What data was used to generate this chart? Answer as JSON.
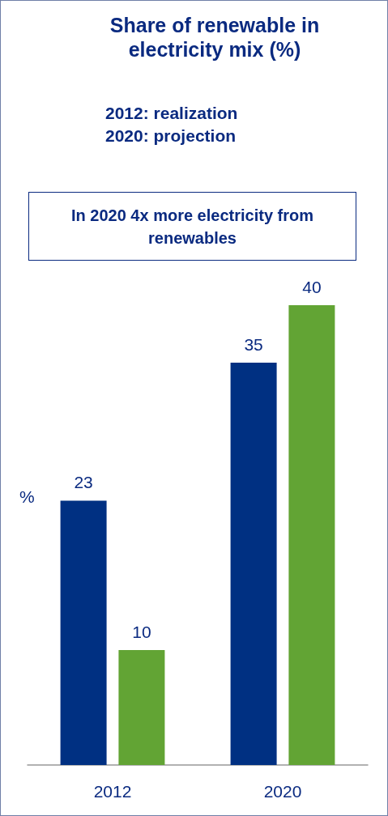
{
  "chart_data": {
    "type": "bar",
    "title": "Share of renewable in electricity mix (%)",
    "subtitle": "2012: realization\n2020: projection",
    "annotations": [
      "In 2020 4x more electricity from renewables"
    ],
    "ylabel": "%",
    "categories": [
      "2012",
      "2020"
    ],
    "series": [
      {
        "color": "#003082",
        "values": [
          23,
          35
        ]
      },
      {
        "color": "#62a434",
        "values": [
          10,
          40
        ]
      }
    ],
    "data_labels": true,
    "grid": false
  }
}
